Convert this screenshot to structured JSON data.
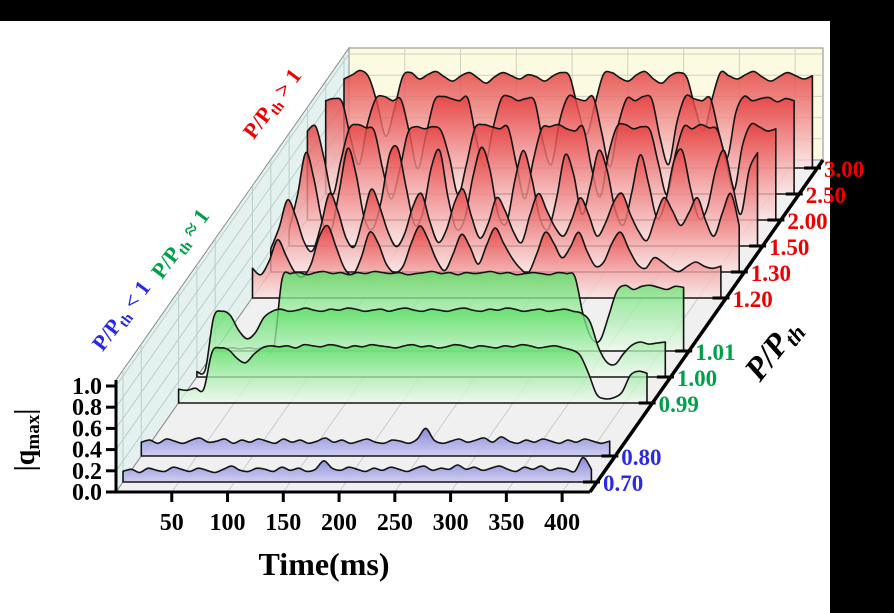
{
  "window": {
    "top_bar_color": "#000000",
    "right_bar_color": "#000000",
    "canvas_color": "#ffffff"
  },
  "chart_data": {
    "type": "area",
    "variant": "3d-waterfall",
    "title": "",
    "xlabel": "Time(ms)",
    "ylabel": {
      "pre": "|q",
      "sub": "max",
      "post": "|"
    },
    "zlabel": {
      "pre": "P/P",
      "sub": "th",
      "post": ""
    },
    "x_ticks": [
      50,
      100,
      150,
      200,
      250,
      300,
      350,
      400
    ],
    "x_range_ms": [
      0,
      425
    ],
    "y_ticks": [
      "0.0",
      "0.2",
      "0.4",
      "0.6",
      "0.8",
      "1.0"
    ],
    "y_range": [
      0,
      1.05
    ],
    "sample_interval_ms": 7.5,
    "grid": true,
    "walls": {
      "left_wall": "#e4f1ee",
      "back_wall": "#fcfbe2",
      "floor": "#f0f0f0",
      "left_grid": "#b9cfcb",
      "back_grid": "#cfcfbc",
      "floor_grid": "#c9cdc9",
      "wall_border": "#8a8a8a",
      "axis_color": "#000000",
      "curve_outline": "#141414"
    },
    "groups": {
      "below": {
        "annotation": {
          "pre": "P/P",
          "sub": "th",
          "post": " < 1"
        },
        "label_color": "#2a2ae6",
        "fill_top": "#8080d6",
        "fill_bottom": "#ccccf2",
        "fill_opacity": 0.9
      },
      "near": {
        "annotation": {
          "pre": "P/P",
          "sub": "th",
          "post": " ≈ 1"
        },
        "label_color": "#00a04a",
        "fill_top": "#55dd60",
        "fill_bottom": "#eefbee",
        "fill_opacity": 0.78
      },
      "above": {
        "annotation": {
          "pre": "P/P",
          "sub": "th",
          "post": " > 1"
        },
        "label_color": "#ee0000",
        "fill_top": "#e43b3b",
        "fill_bottom": "#fce3e3",
        "fill_opacity": 0.82
      }
    },
    "series": [
      {
        "z_label": "0.70",
        "group": "below",
        "values": [
          0.1,
          0.12,
          0.09,
          0.13,
          0.11,
          0.1,
          0.14,
          0.12,
          0.1,
          0.13,
          0.11,
          0.09,
          0.12,
          0.15,
          0.11,
          0.1,
          0.13,
          0.12,
          0.1,
          0.14,
          0.11,
          0.13,
          0.1,
          0.12,
          0.2,
          0.13,
          0.11,
          0.14,
          0.12,
          0.1,
          0.13,
          0.11,
          0.14,
          0.12,
          0.1,
          0.13,
          0.15,
          0.11,
          0.13,
          0.12,
          0.16,
          0.12,
          0.14,
          0.11,
          0.13,
          0.15,
          0.12,
          0.1,
          0.14,
          0.12,
          0.15,
          0.11,
          0.13,
          0.12,
          0.1,
          0.23,
          0.12
        ]
      },
      {
        "z_label": "0.80",
        "group": "below",
        "values": [
          0.13,
          0.15,
          0.12,
          0.16,
          0.14,
          0.12,
          0.15,
          0.17,
          0.13,
          0.14,
          0.16,
          0.12,
          0.15,
          0.13,
          0.16,
          0.14,
          0.12,
          0.16,
          0.13,
          0.15,
          0.12,
          0.14,
          0.17,
          0.13,
          0.15,
          0.12,
          0.14,
          0.16,
          0.13,
          0.12,
          0.15,
          0.14,
          0.12,
          0.16,
          0.26,
          0.15,
          0.12,
          0.14,
          0.16,
          0.13,
          0.15,
          0.17,
          0.13,
          0.18,
          0.14,
          0.12,
          0.15,
          0.13,
          0.16,
          0.14,
          0.12,
          0.15,
          0.13,
          0.16,
          0.14,
          0.12,
          0.14
        ]
      },
      {
        "z_label": "0.99",
        "group": "near",
        "values": [
          0.13,
          0.12,
          0.14,
          0.13,
          0.48,
          0.52,
          0.5,
          0.42,
          0.38,
          0.46,
          0.52,
          0.54,
          0.53,
          0.54,
          0.52,
          0.55,
          0.54,
          0.53,
          0.55,
          0.54,
          0.52,
          0.54,
          0.53,
          0.55,
          0.54,
          0.53,
          0.52,
          0.54,
          0.55,
          0.53,
          0.54,
          0.52,
          0.53,
          0.55,
          0.54,
          0.52,
          0.54,
          0.53,
          0.52,
          0.54,
          0.53,
          0.55,
          0.54,
          0.52,
          0.53,
          0.54,
          0.52,
          0.5,
          0.45,
          0.28,
          0.08,
          0.04,
          0.05,
          0.1,
          0.26,
          0.3,
          0.28
        ]
      },
      {
        "z_label": "1.00",
        "group": "near",
        "values": [
          0.05,
          0.07,
          0.56,
          0.62,
          0.58,
          0.44,
          0.36,
          0.42,
          0.56,
          0.62,
          0.64,
          0.62,
          0.63,
          0.65,
          0.63,
          0.62,
          0.64,
          0.63,
          0.65,
          0.64,
          0.62,
          0.63,
          0.64,
          0.62,
          0.64,
          0.65,
          0.63,
          0.62,
          0.64,
          0.63,
          0.62,
          0.64,
          0.65,
          0.63,
          0.62,
          0.64,
          0.63,
          0.65,
          0.64,
          0.62,
          0.63,
          0.64,
          0.62,
          0.63,
          0.64,
          0.62,
          0.6,
          0.52,
          0.28,
          0.14,
          0.12,
          0.22,
          0.3,
          0.33,
          0.31,
          0.32,
          0.33
        ]
      },
      {
        "z_label": "1.01",
        "group": "near",
        "values": [
          0.02,
          0.02,
          0.03,
          0.02,
          0.03,
          0.02,
          0.04,
          0.03,
          0.68,
          0.73,
          0.74,
          0.72,
          0.74,
          0.75,
          0.73,
          0.74,
          0.72,
          0.74,
          0.73,
          0.75,
          0.74,
          0.73,
          0.74,
          0.72,
          0.73,
          0.74,
          0.75,
          0.73,
          0.74,
          0.72,
          0.74,
          0.73,
          0.74,
          0.75,
          0.73,
          0.74,
          0.72,
          0.73,
          0.74,
          0.73,
          0.72,
          0.74,
          0.73,
          0.7,
          0.34,
          0.12,
          0.1,
          0.32,
          0.56,
          0.62,
          0.58,
          0.61,
          0.62,
          0.6,
          0.58,
          0.61,
          0.6
        ]
      },
      {
        "z_label": "1.20",
        "group": "above",
        "values": [
          0.28,
          0.22,
          0.35,
          0.55,
          0.4,
          0.25,
          0.2,
          0.32,
          0.58,
          0.68,
          0.48,
          0.28,
          0.22,
          0.38,
          0.62,
          0.52,
          0.32,
          0.24,
          0.3,
          0.52,
          0.68,
          0.55,
          0.36,
          0.26,
          0.42,
          0.6,
          0.48,
          0.32,
          0.5,
          0.66,
          0.52,
          0.38,
          0.28,
          0.24,
          0.42,
          0.62,
          0.52,
          0.38,
          0.48,
          0.62,
          0.44,
          0.3,
          0.34,
          0.52,
          0.62,
          0.46,
          0.32,
          0.28,
          0.38,
          0.34,
          0.28,
          0.25,
          0.3,
          0.34,
          0.3,
          0.28,
          0.3
        ]
      },
      {
        "z_label": "1.30",
        "group": "above",
        "values": [
          0.22,
          0.42,
          0.68,
          0.52,
          0.28,
          0.2,
          0.44,
          0.74,
          0.58,
          0.32,
          0.24,
          0.5,
          0.78,
          0.62,
          0.38,
          0.24,
          0.36,
          0.62,
          0.74,
          0.48,
          0.28,
          0.4,
          0.66,
          0.78,
          0.52,
          0.32,
          0.46,
          0.7,
          0.58,
          0.38,
          0.28,
          0.54,
          0.74,
          0.58,
          0.42,
          0.34,
          0.5,
          0.7,
          0.54,
          0.34,
          0.46,
          0.66,
          0.74,
          0.54,
          0.38,
          0.3,
          0.52,
          0.7,
          0.58,
          0.44,
          0.56,
          0.7,
          0.48,
          0.34,
          0.56,
          0.74,
          0.44
        ]
      },
      {
        "z_label": "1.50",
        "group": "above",
        "values": [
          0.15,
          0.48,
          0.88,
          0.62,
          0.22,
          0.14,
          0.52,
          0.92,
          0.68,
          0.26,
          0.16,
          0.42,
          0.86,
          0.92,
          0.55,
          0.2,
          0.32,
          0.74,
          0.9,
          0.46,
          0.16,
          0.26,
          0.66,
          0.93,
          0.72,
          0.3,
          0.22,
          0.62,
          0.9,
          0.64,
          0.26,
          0.16,
          0.46,
          0.86,
          0.68,
          0.3,
          0.56,
          0.9,
          0.72,
          0.34,
          0.2,
          0.52,
          0.86,
          0.58,
          0.26,
          0.42,
          0.8,
          0.9,
          0.54,
          0.26,
          0.36,
          0.72,
          0.9,
          0.58,
          0.3,
          0.72,
          0.88
        ]
      },
      {
        "z_label": "2.00",
        "group": "above",
        "values": [
          0.84,
          0.88,
          0.58,
          0.24,
          0.56,
          0.86,
          0.9,
          0.87,
          0.84,
          0.48,
          0.2,
          0.46,
          0.82,
          0.88,
          0.86,
          0.88,
          0.84,
          0.58,
          0.24,
          0.52,
          0.86,
          0.9,
          0.88,
          0.86,
          0.87,
          0.52,
          0.2,
          0.56,
          0.86,
          0.88,
          0.9,
          0.86,
          0.84,
          0.87,
          0.48,
          0.22,
          0.62,
          0.88,
          0.9,
          0.86,
          0.88,
          0.84,
          0.52,
          0.24,
          0.62,
          0.88,
          0.86,
          0.9,
          0.87,
          0.85,
          0.58,
          0.28,
          0.7,
          0.9,
          0.88,
          0.84,
          0.86
        ]
      },
      {
        "z_label": "2.50",
        "group": "above",
        "values": [
          0.88,
          0.9,
          0.86,
          0.52,
          0.28,
          0.66,
          0.9,
          0.92,
          0.88,
          0.89,
          0.58,
          0.24,
          0.56,
          0.88,
          0.92,
          0.9,
          0.88,
          0.9,
          0.52,
          0.26,
          0.62,
          0.9,
          0.92,
          0.88,
          0.9,
          0.87,
          0.48,
          0.28,
          0.7,
          0.92,
          0.9,
          0.88,
          0.91,
          0.58,
          0.26,
          0.66,
          0.9,
          0.88,
          0.92,
          0.89,
          0.52,
          0.28,
          0.68,
          0.92,
          0.9,
          0.88,
          0.9,
          0.58,
          0.34,
          0.76,
          0.92,
          0.88,
          0.9,
          0.91,
          0.87,
          0.9,
          0.88
        ]
      },
      {
        "z_label": "3.00",
        "group": "above",
        "values": [
          0.84,
          0.88,
          0.92,
          0.85,
          0.6,
          0.3,
          0.55,
          0.86,
          0.9,
          0.84,
          0.88,
          0.91,
          0.86,
          0.82,
          0.87,
          0.9,
          0.85,
          0.8,
          0.86,
          0.9,
          0.87,
          0.84,
          0.88,
          0.86,
          0.82,
          0.87,
          0.9,
          0.86,
          0.55,
          0.32,
          0.6,
          0.88,
          0.9,
          0.85,
          0.82,
          0.88,
          0.91,
          0.84,
          0.8,
          0.87,
          0.9,
          0.85,
          0.56,
          0.35,
          0.65,
          0.9,
          0.87,
          0.84,
          0.88,
          0.91,
          0.86,
          0.82,
          0.86,
          0.9,
          0.87,
          0.84,
          0.87
        ]
      }
    ]
  }
}
